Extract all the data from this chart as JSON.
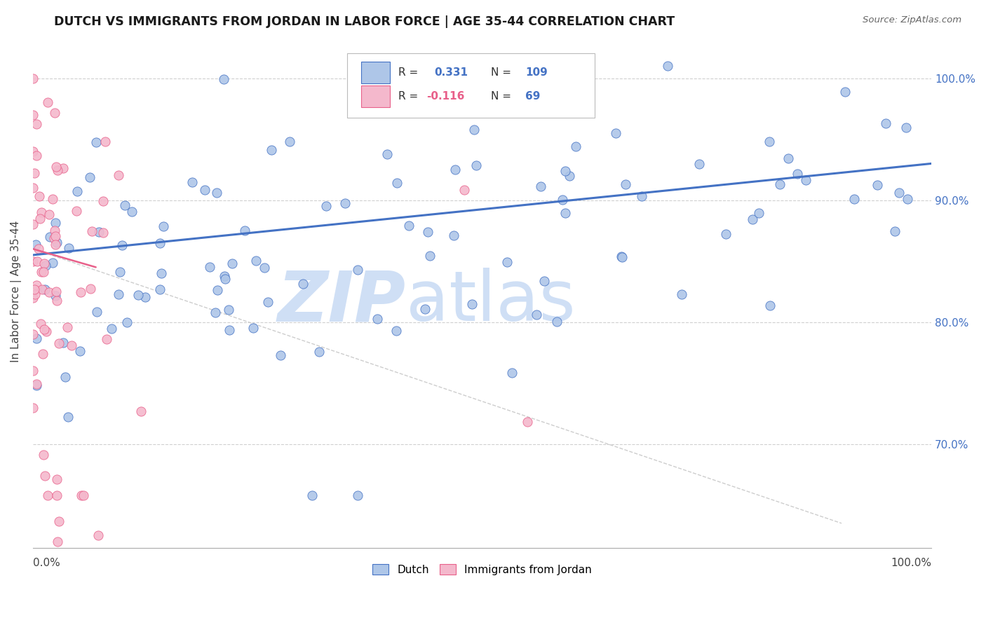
{
  "title": "DUTCH VS IMMIGRANTS FROM JORDAN IN LABOR FORCE | AGE 35-44 CORRELATION CHART",
  "source": "Source: ZipAtlas.com",
  "ylabel": "In Labor Force | Age 35-44",
  "xlim": [
    0.0,
    1.0
  ],
  "ylim": [
    0.615,
    1.035
  ],
  "ytick_positions": [
    0.7,
    0.8,
    0.9,
    1.0
  ],
  "ytick_labels": [
    "70.0%",
    "80.0%",
    "90.0%",
    "100.0%"
  ],
  "legend_entries": [
    {
      "label": "Dutch",
      "R": 0.331,
      "N": 109
    },
    {
      "label": "Immigrants from Jordan",
      "R": -0.116,
      "N": 69
    }
  ],
  "dutch_color": "#4472c4",
  "dutch_scatter_color": "#aec6e8",
  "jordan_color": "#e8608a",
  "jordan_scatter_color": "#f4b8cc",
  "watermark_zip": "ZIP",
  "watermark_atlas": "atlas",
  "watermark_color": "#cfdff5",
  "grid_color": "#d0d0d0",
  "note_dutch_R_color": "#333333",
  "note_N_color": "#4472c4"
}
